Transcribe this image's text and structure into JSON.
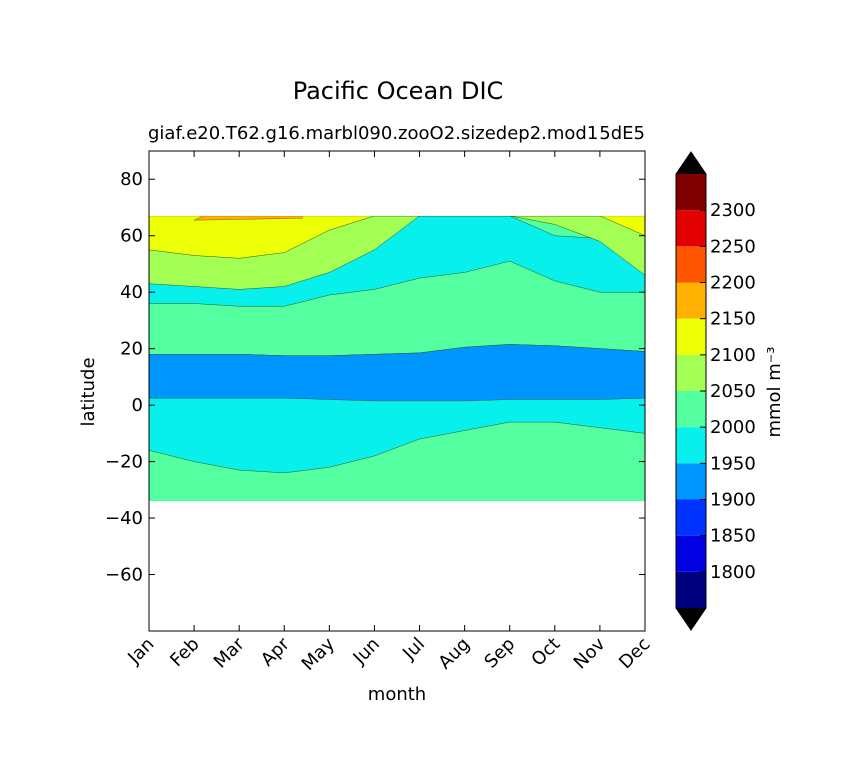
{
  "chart_data": {
    "type": "heatmap",
    "title": "Pacific Ocean DIC",
    "subtitle_left": "giaf.e20.T62.g16.marbl090.zooO2.sizedep2.mod1",
    "subtitle_right": "5dE5",
    "xlabel": "month",
    "ylabel": "latitude",
    "x_ticks": [
      "Jan",
      "Feb",
      "Mar",
      "Apr",
      "May",
      "Jun",
      "Jul",
      "Aug",
      "Sep",
      "Oct",
      "Nov",
      "Dec"
    ],
    "xlim": [
      0,
      11
    ],
    "ylim": [
      -80,
      90
    ],
    "y_ticks": [
      80,
      60,
      40,
      20,
      0,
      -20,
      -40,
      -60
    ],
    "y_tick_labels": [
      "80",
      "60",
      "40",
      "20",
      "0",
      "−20",
      "−40",
      "−60"
    ],
    "colorbar": {
      "label": "mmol m⁻³",
      "levels": [
        1750,
        1800,
        1850,
        1900,
        1950,
        2000,
        2050,
        2100,
        2150,
        2200,
        2250,
        2300,
        2350
      ],
      "tick_labels": [
        "1800",
        "1850",
        "1900",
        "1950",
        "2000",
        "2050",
        "2100",
        "2150",
        "2200",
        "2250",
        "2300"
      ],
      "colors": [
        "#00007f",
        "#0000e3",
        "#0033ff",
        "#0096ff",
        "#07f0ec",
        "#54ff9f",
        "#a3ff54",
        "#edff07",
        "#ffb000",
        "#ff5500",
        "#e30000",
        "#7f0000"
      ],
      "extend_color": "#000000"
    },
    "data_lat_range": [
      -34,
      67
    ],
    "regions": [
      {
        "range": "1900-1950",
        "description": "equatorial band",
        "north_boundary_lat": [
          18,
          18,
          18,
          17.5,
          17.5,
          18,
          18.5,
          20.5,
          21.5,
          21,
          20,
          19
        ],
        "south_boundary_lat": [
          2.5,
          2.5,
          2.5,
          2.5,
          2,
          1.5,
          1.5,
          1.5,
          2,
          2,
          2,
          2.5
        ]
      },
      {
        "range": "1950-2000",
        "description": "north band",
        "north_boundary_lat": [
          52,
          53,
          52,
          62,
          67,
          67,
          67,
          67,
          67,
          60,
          59,
          59
        ],
        "south_boundary_lat": [
          36,
          36,
          35,
          35,
          39,
          41,
          45,
          47,
          51,
          44,
          40,
          40
        ]
      },
      {
        "range": "2050-2100",
        "description": "northern high latitudes",
        "south_boundary_lat": [
          43,
          42,
          41,
          42,
          47,
          55,
          67,
          67,
          67,
          64,
          58,
          46
        ]
      },
      {
        "range": "2100-2150",
        "description": "northern high latitudes",
        "south_boundary_lat": [
          55,
          53,
          52,
          54,
          62,
          67,
          67,
          67,
          67,
          67,
          67,
          60
        ]
      },
      {
        "range": "2150-2200",
        "description": "small patch near 66N",
        "x_span": [
          1.0,
          3.4
        ]
      },
      {
        "range": "1950-2000",
        "description": "south band",
        "south_boundary_lat": [
          -16,
          -20,
          -23,
          -24,
          -22,
          -18,
          -12,
          -9,
          -6,
          -6,
          -8,
          -10
        ]
      }
    ]
  }
}
